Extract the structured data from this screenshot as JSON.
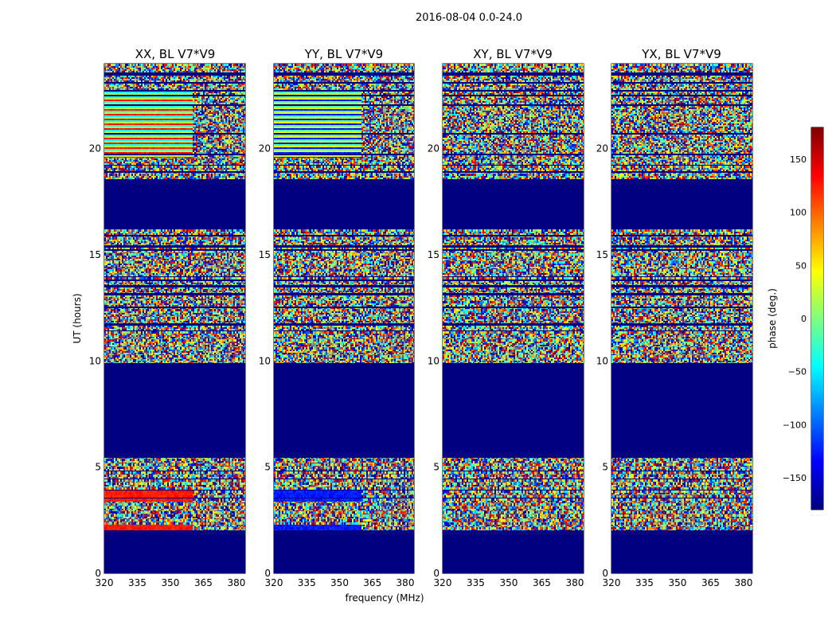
{
  "chart_data": {
    "type": "heatmap",
    "title": "2016-08-04 0.0-24.0",
    "xlabel": "frequency (MHz)",
    "ylabel": "UT (hours)",
    "xlim": [
      320,
      384
    ],
    "ylim": [
      0,
      24
    ],
    "xticks": [
      320,
      335,
      350,
      365,
      380
    ],
    "yticks": [
      0,
      5,
      10,
      15,
      20
    ],
    "colorbar": {
      "label": "phase (deg.)",
      "range": [
        -180,
        180
      ],
      "ticks": [
        -150,
        -100,
        -50,
        0,
        50,
        100,
        150
      ],
      "tick_labels": [
        "−150",
        "−100",
        "−50",
        "0",
        "50",
        "100",
        "150"
      ],
      "extra_label": ". . . . ."
    },
    "panels": [
      {
        "title": "XX, BL V7*V9",
        "pol": "XX"
      },
      {
        "title": "YY, BL V7*V9",
        "pol": "YY"
      },
      {
        "title": "XY, BL V7*V9",
        "pol": "XY"
      },
      {
        "title": "YX, BL V7*V9",
        "pol": "YX"
      }
    ],
    "masked_value": -180,
    "masked_ut_ranges": [
      [
        0,
        2
      ],
      [
        5.5,
        9.9
      ],
      [
        16.2,
        18.6
      ]
    ],
    "coherent_ut_ranges": [
      [
        19.6,
        22.8
      ],
      [
        3.4,
        3.9
      ],
      [
        2.0,
        2.3
      ]
    ]
  }
}
